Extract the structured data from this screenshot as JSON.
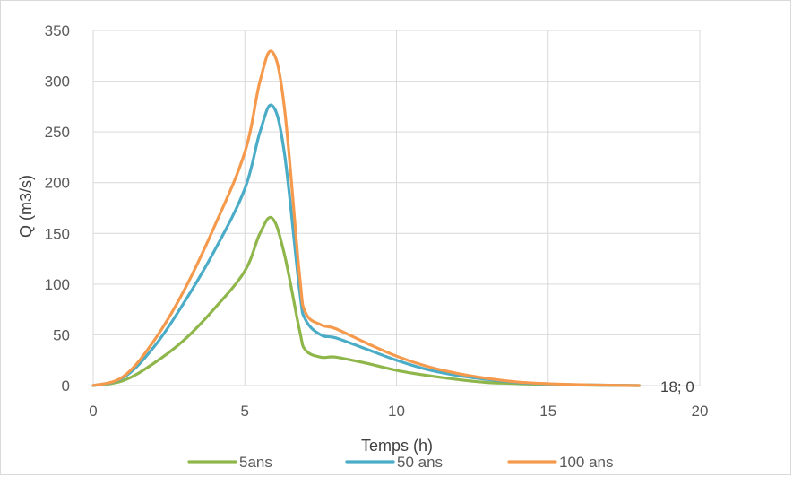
{
  "chart_data": {
    "type": "line",
    "title": "",
    "xlabel": "Temps (h)",
    "ylabel": "Q (m3/s)",
    "xlim": [
      0,
      20
    ],
    "ylim": [
      0,
      350
    ],
    "x_ticks": [
      0,
      5,
      10,
      15,
      20
    ],
    "y_ticks": [
      0,
      50,
      100,
      150,
      200,
      250,
      300,
      350
    ],
    "grid": {
      "vertical": true,
      "horizontal": true
    },
    "legend_position": "bottom",
    "annotation": {
      "text": "18; 0",
      "x": 18,
      "y": 0
    },
    "series": [
      {
        "name": "5ans",
        "color": "#8fb64a",
        "x": [
          0,
          1,
          2,
          3,
          4,
          5,
          5.5,
          5.9,
          6.3,
          6.8,
          7,
          7.5,
          8,
          9,
          10,
          11,
          12,
          13,
          14,
          15,
          16,
          17,
          18
        ],
        "y": [
          0,
          5,
          22,
          45,
          76,
          113,
          150,
          165,
          130,
          55,
          35,
          28,
          28,
          22,
          15,
          10,
          6,
          3,
          2,
          1,
          0.5,
          0.2,
          0
        ]
      },
      {
        "name": "50 ans",
        "color": "#4aacc6",
        "x": [
          0,
          1,
          2,
          3,
          4,
          5,
          5.5,
          5.9,
          6.3,
          6.8,
          7,
          7.5,
          8,
          9,
          10,
          11,
          12,
          13,
          14,
          15,
          16,
          17,
          18
        ],
        "y": [
          0,
          8,
          38,
          82,
          133,
          194,
          250,
          276,
          230,
          95,
          65,
          50,
          47,
          36,
          25,
          16,
          10,
          6,
          3,
          1.5,
          0.8,
          0.3,
          0
        ]
      },
      {
        "name": "100 ans",
        "color": "#f59a4d",
        "x": [
          0,
          1,
          2,
          3,
          4,
          5,
          5.5,
          5.9,
          6.3,
          6.8,
          7,
          7.5,
          8,
          9,
          10,
          11,
          12,
          13,
          14,
          15,
          16,
          17,
          18
        ],
        "y": [
          0,
          9,
          44,
          94,
          157,
          230,
          300,
          329,
          275,
          110,
          72,
          60,
          56,
          42,
          29,
          19,
          12,
          7,
          3.5,
          1.8,
          0.9,
          0.3,
          0
        ]
      }
    ]
  }
}
